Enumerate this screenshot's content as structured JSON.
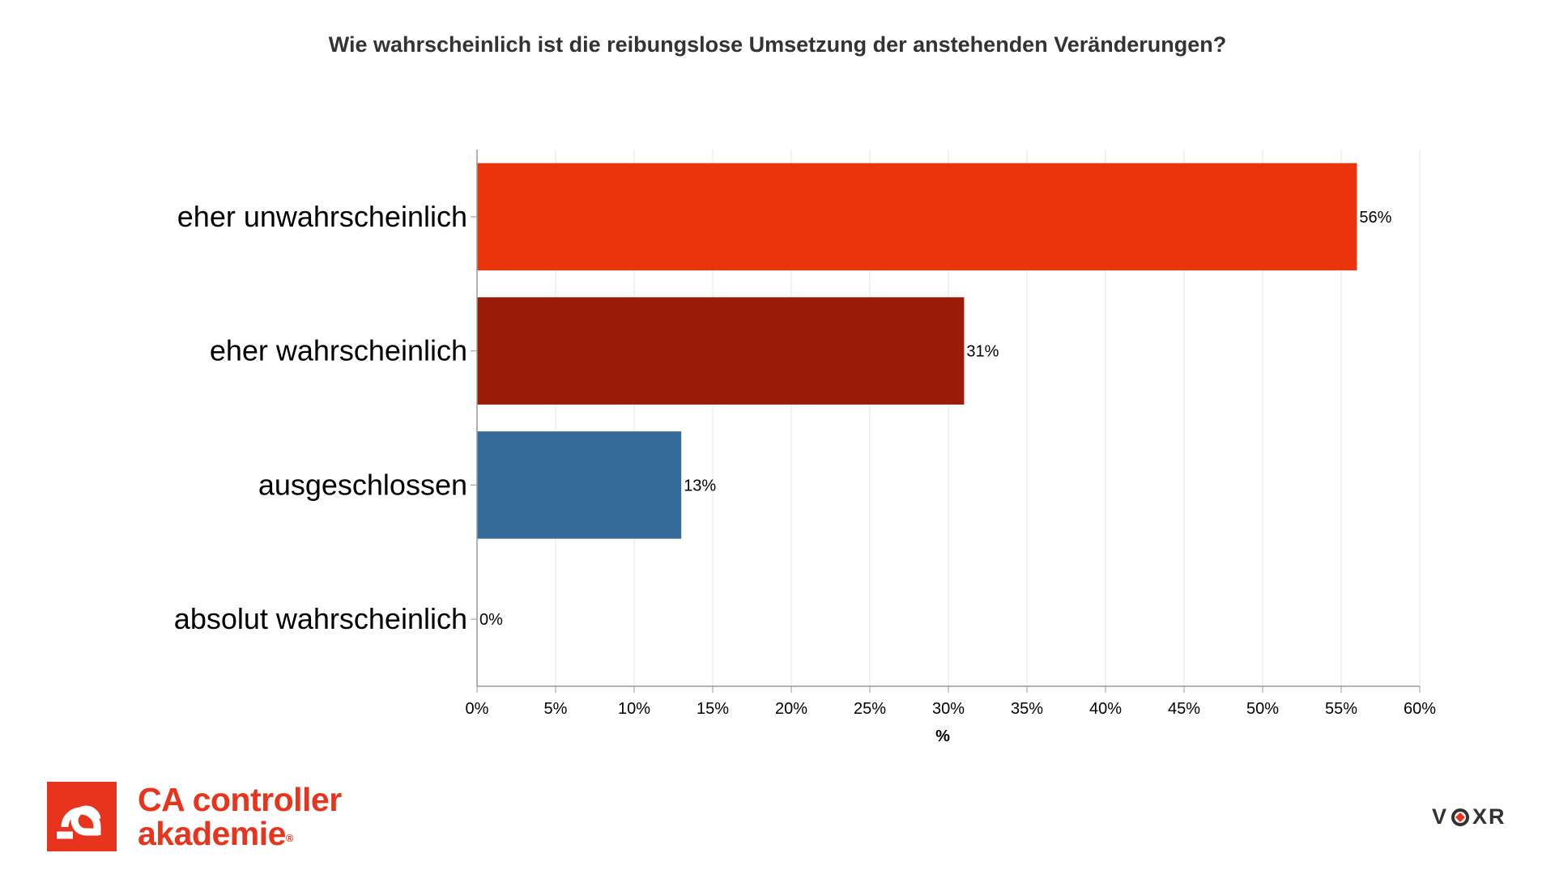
{
  "chart_data": {
    "type": "bar",
    "orientation": "horizontal",
    "title": "Wie wahrscheinlich ist die reibungslose Umsetzung der anstehenden Veränderungen?",
    "categories": [
      "eher unwahrscheinlich",
      "eher wahrscheinlich",
      "ausgeschlossen",
      "absolut wahrscheinlich"
    ],
    "values": [
      56,
      31,
      13,
      0
    ],
    "value_labels": [
      "56%",
      "31%",
      "13%",
      "0%"
    ],
    "colors": [
      "#ea340c",
      "#991c09",
      "#356c99",
      "#356c99"
    ],
    "xlabel": "%",
    "xlim": [
      0,
      60
    ],
    "xticks": [
      0,
      5,
      10,
      15,
      20,
      25,
      30,
      35,
      40,
      45,
      50,
      55,
      60
    ],
    "xtick_labels": [
      "0%",
      "5%",
      "10%",
      "15%",
      "20%",
      "25%",
      "30%",
      "35%",
      "40%",
      "45%",
      "50%",
      "55%",
      "60%"
    ],
    "grid": true,
    "legend": "none"
  },
  "branding": {
    "company_line1": "CA controller",
    "company_line2": "akademie",
    "registered_mark": "®",
    "company_color": "#e8341c",
    "voxr": "VOXR",
    "voxr_o_icon": "circle-diamond-icon"
  }
}
